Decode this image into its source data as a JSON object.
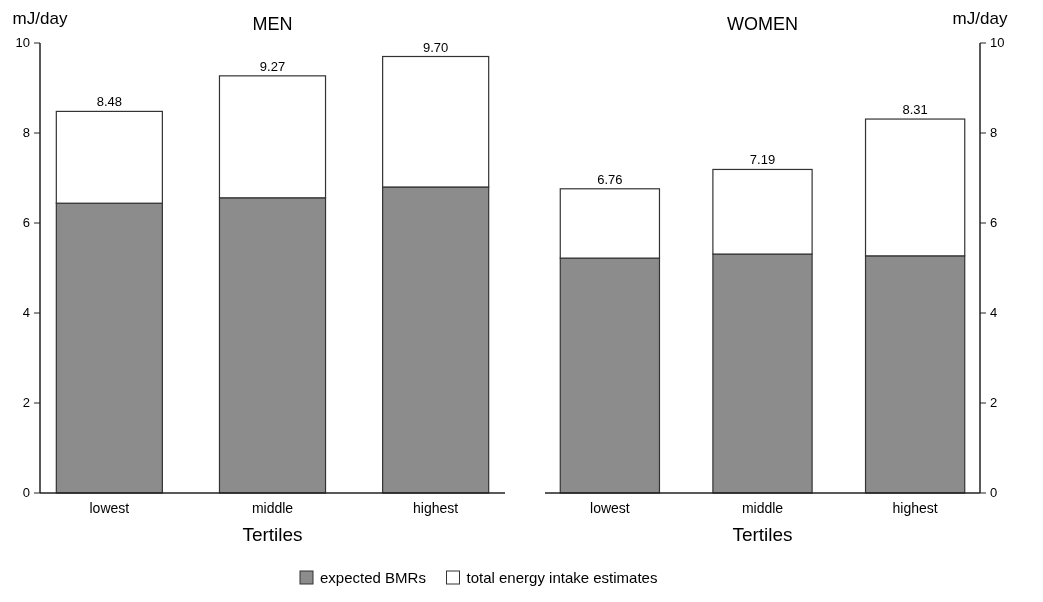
{
  "chart_data": [
    {
      "type": "bar",
      "title": "MEN",
      "xlabel": "Tertiles",
      "ylabel": "mJ/day",
      "categories": [
        "lowest",
        "middle",
        "highest"
      ],
      "stacked": true,
      "ylim": [
        0,
        10
      ],
      "yticks": [
        0,
        2,
        4,
        6,
        8,
        10
      ],
      "legend": "bottom",
      "series": [
        {
          "name": "expected BMRs",
          "color": "#8c8c8c",
          "values": [
            6.44,
            6.56,
            6.8
          ]
        },
        {
          "name": "total energy intake estimates",
          "color": "#ffffff",
          "values": [
            2.04,
            2.71,
            2.9
          ]
        }
      ],
      "totals": [
        "8.48",
        "9.27",
        "9.70"
      ]
    },
    {
      "type": "bar",
      "title": "WOMEN",
      "xlabel": "Tertiles",
      "y2label": "mJ/day",
      "categories": [
        "lowest",
        "middle",
        "highest"
      ],
      "stacked": true,
      "y2lim": [
        0,
        10
      ],
      "y2ticks": [
        0,
        2,
        4,
        6,
        8,
        10
      ],
      "series": [
        {
          "color": "#8c8c8c",
          "values": [
            5.22,
            5.31,
            5.27
          ],
          "axis": "y2"
        },
        {
          "color": "#ffffff",
          "values": [
            1.54,
            1.88,
            3.04
          ],
          "axis": "y2"
        }
      ],
      "totals": [
        "6.76",
        "7.19",
        "8.31"
      ]
    }
  ]
}
